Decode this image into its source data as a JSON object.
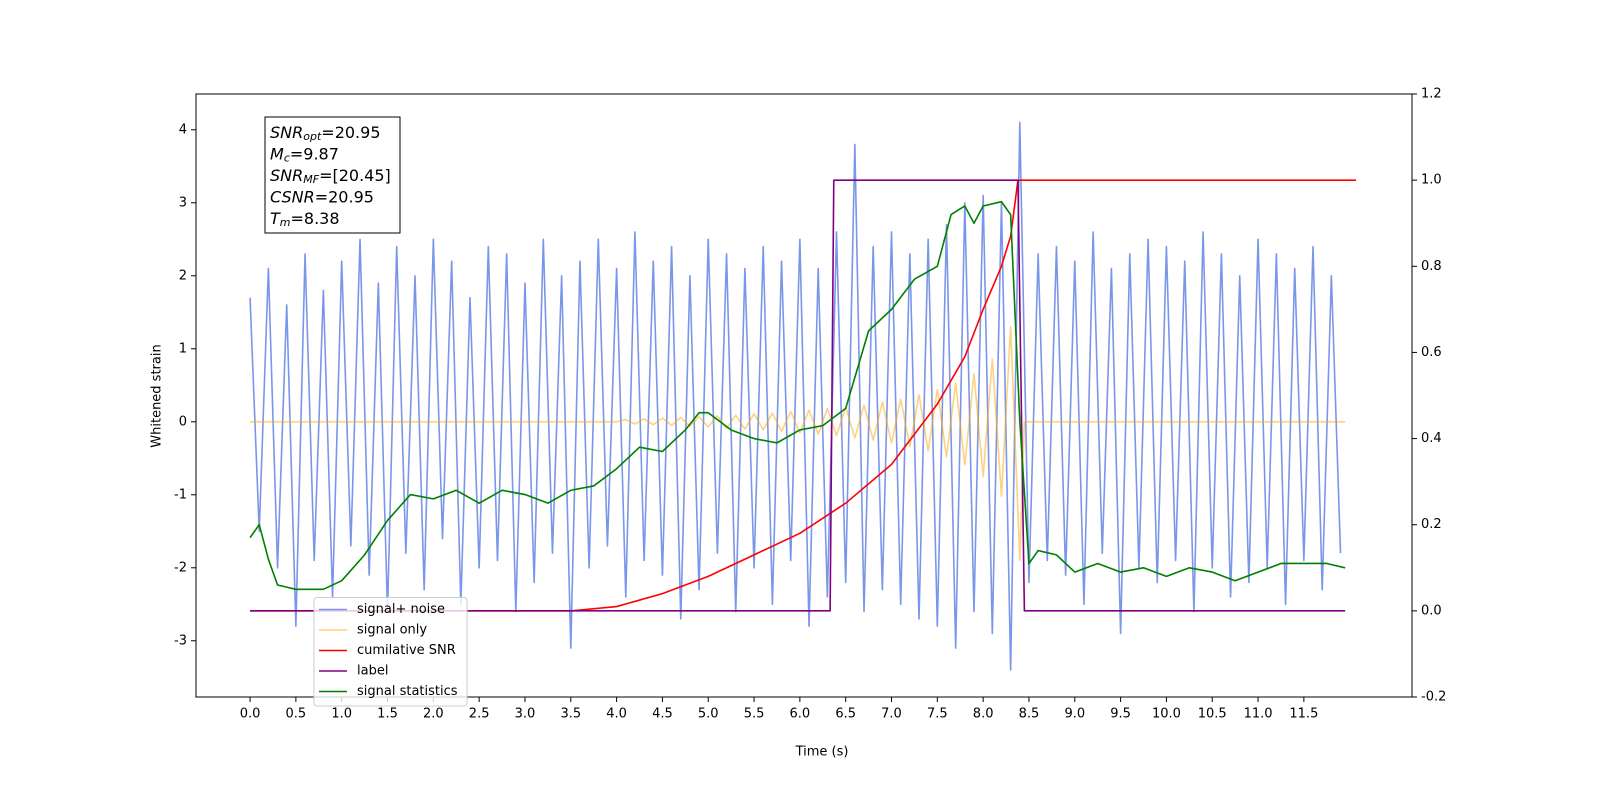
{
  "chart_data": {
    "type": "line",
    "xlabel": "Time (s)",
    "ylabel": "Whitened strain",
    "xlim": [
      -0.59,
      12.68
    ],
    "ylim": [
      -3.77,
      4.49
    ],
    "y2lim": [
      -0.2,
      1.2
    ],
    "xticks": [
      {
        "value": 0,
        "label": "0.0"
      },
      0.5,
      {
        "value": 1,
        "label": "1.0"
      },
      1.5,
      {
        "value": 2,
        "label": "2.0"
      },
      2.5,
      {
        "value": 3,
        "label": "3.0"
      },
      3.5,
      {
        "value": 4,
        "label": "4.0"
      },
      4.5,
      {
        "value": 5,
        "label": "5.0"
      },
      5.5,
      {
        "value": 6,
        "label": "6.0"
      },
      6.5,
      {
        "value": 7,
        "label": "7.0"
      },
      7.5,
      {
        "value": 8,
        "label": "8.0"
      },
      8.5,
      {
        "value": 9,
        "label": "9.0"
      },
      9.5,
      {
        "value": 10,
        "label": "10.0"
      },
      10.5,
      {
        "value": 11,
        "label": "11.0"
      },
      11.5
    ],
    "yticks": [
      -3,
      -2,
      -1,
      0,
      1,
      2,
      3,
      4
    ],
    "y2ticks": [
      -0.2,
      {
        "value": 0,
        "label": "0.0"
      },
      0.2,
      0.4,
      0.6,
      0.8,
      {
        "value": 1,
        "label": "1.0"
      },
      1.2
    ],
    "grid": false,
    "legend": "lower left",
    "annotation": [
      {
        "symbol": "SNR",
        "subscript": "opt",
        "text": "=20.95"
      },
      {
        "symbol": "M",
        "subscript": "c",
        "text": "=9.87"
      },
      {
        "symbol": "SNR",
        "subscript": "MF",
        "text": "=[20.45]"
      },
      {
        "symbol": "CSNR",
        "text": "=20.95"
      },
      {
        "symbol": "T",
        "subscript": "m",
        "text": "=8.38"
      }
    ],
    "series": [
      {
        "name": "signal+ noise",
        "color": "#4169e1",
        "alpha": 0.7,
        "x": [
          0,
          0.1,
          0.2,
          0.3,
          0.4,
          0.5,
          0.6,
          0.7,
          0.8,
          0.9,
          1,
          1.1,
          1.2,
          1.3,
          1.4,
          1.5,
          1.6,
          1.7,
          1.8,
          1.9,
          2,
          2.1,
          2.2,
          2.3,
          2.4,
          2.5,
          2.6,
          2.7,
          2.8,
          2.9,
          3,
          3.1,
          3.2,
          3.3,
          3.4,
          3.5,
          3.6,
          3.7,
          3.8,
          3.9,
          4,
          4.1,
          4.2,
          4.3,
          4.4,
          4.5,
          4.6,
          4.7,
          4.8,
          4.9,
          5,
          5.1,
          5.2,
          5.3,
          5.4,
          5.5,
          5.6,
          5.7,
          5.8,
          5.9,
          6,
          6.1,
          6.2,
          6.3,
          6.4,
          6.5,
          6.6,
          6.7,
          6.8,
          6.9,
          7,
          7.1,
          7.2,
          7.3,
          7.4,
          7.5,
          7.6,
          7.7,
          7.8,
          7.9,
          8,
          8.1,
          8.2,
          8.3,
          8.4,
          8.5,
          8.6,
          8.7,
          8.8,
          8.9,
          9,
          9.1,
          9.2,
          9.3,
          9.4,
          9.5,
          9.6,
          9.7,
          9.8,
          9.9,
          10,
          10.1,
          10.2,
          10.3,
          10.4,
          10.5,
          10.6,
          10.7,
          10.8,
          10.9,
          11,
          11.1,
          11.2,
          11.3,
          11.4,
          11.5,
          11.6,
          11.7,
          11.8,
          11.9
        ],
        "values": [
          1.7,
          -1.5,
          2.1,
          -2.0,
          1.6,
          -2.8,
          2.3,
          -1.9,
          1.8,
          -2.4,
          2.2,
          -1.7,
          2.5,
          -2.1,
          1.9,
          -2.6,
          2.4,
          -1.8,
          2.0,
          -2.3,
          2.5,
          -1.6,
          2.2,
          -2.5,
          1.7,
          -2.0,
          2.4,
          -1.9,
          2.3,
          -2.6,
          1.9,
          -2.2,
          2.5,
          -1.8,
          2.0,
          -3.1,
          2.2,
          -2.0,
          2.5,
          -1.7,
          2.1,
          -2.4,
          2.6,
          -1.9,
          2.2,
          -2.1,
          2.4,
          -2.7,
          2.0,
          -2.3,
          2.5,
          -1.8,
          2.3,
          -2.6,
          2.1,
          -2.0,
          2.4,
          -2.5,
          2.2,
          -1.9,
          2.5,
          -2.8,
          2.1,
          -2.4,
          2.6,
          -2.2,
          3.8,
          -2.6,
          2.4,
          -2.3,
          2.6,
          -2.5,
          2.3,
          -2.7,
          2.5,
          -2.8,
          2.7,
          -3.1,
          3.0,
          -2.6,
          3.1,
          -2.9,
          3.0,
          -3.4,
          4.1,
          -2.2,
          2.3,
          -1.9,
          2.4,
          -2.1,
          2.2,
          -2.5,
          2.6,
          -1.8,
          2.1,
          -2.9,
          2.3,
          -2.0,
          2.5,
          -2.2,
          2.4,
          -1.9,
          2.2,
          -2.6,
          2.6,
          -2.0,
          2.3,
          -2.4,
          2.0,
          -2.2,
          2.5,
          -2.0,
          2.3,
          -2.5,
          2.1,
          -1.9,
          2.4,
          -2.3,
          2.0,
          -1.8
        ]
      },
      {
        "name": "signal only",
        "color": "#ffa500",
        "alpha": 0.5,
        "x": [
          0,
          4.0,
          4.1,
          4.2,
          4.3,
          4.4,
          4.5,
          4.6,
          4.7,
          4.8,
          4.9,
          5.0,
          5.1,
          5.2,
          5.3,
          5.4,
          5.5,
          5.6,
          5.7,
          5.8,
          5.9,
          6.0,
          6.1,
          6.2,
          6.3,
          6.4,
          6.5,
          6.6,
          6.7,
          6.8,
          6.9,
          7.0,
          7.1,
          7.2,
          7.3,
          7.4,
          7.5,
          7.6,
          7.7,
          7.8,
          7.9,
          8.0,
          8.1,
          8.2,
          8.3,
          8.4,
          8.45,
          11.95
        ],
        "values": [
          0,
          0,
          0.03,
          -0.03,
          0.04,
          -0.04,
          0.05,
          -0.05,
          0.06,
          -0.06,
          0.07,
          -0.07,
          0.08,
          -0.09,
          0.09,
          -0.1,
          0.11,
          -0.11,
          0.12,
          -0.13,
          0.14,
          -0.15,
          0.16,
          -0.17,
          0.18,
          -0.19,
          0.2,
          -0.22,
          0.23,
          -0.25,
          0.27,
          -0.29,
          0.31,
          -0.34,
          0.37,
          -0.4,
          0.44,
          -0.48,
          0.53,
          -0.59,
          0.66,
          -0.75,
          0.86,
          -1.02,
          1.3,
          -1.9,
          0,
          0
        ]
      },
      {
        "name": "cumilative SNR",
        "color": "#ff0000",
        "axis": "y2",
        "x": [
          0,
          3.5,
          4.0,
          4.5,
          5.0,
          5.5,
          6.0,
          6.5,
          7.0,
          7.5,
          7.8,
          8.0,
          8.2,
          8.3,
          8.38,
          12.07
        ],
        "values": [
          0,
          0,
          0.01,
          0.04,
          0.08,
          0.13,
          0.18,
          0.25,
          0.34,
          0.48,
          0.59,
          0.7,
          0.8,
          0.87,
          1,
          1
        ]
      },
      {
        "name": "label",
        "color": "#800080",
        "axis": "y2",
        "x": [
          0,
          6.33,
          6.37,
          8.38,
          8.45,
          11.95
        ],
        "values": [
          0,
          0,
          1,
          1,
          0,
          0
        ]
      },
      {
        "name": "signal statistics",
        "color": "#008000",
        "axis": "y2",
        "x": [
          0,
          0.1,
          0.2,
          0.3,
          0.5,
          0.8,
          1.0,
          1.25,
          1.5,
          1.75,
          2.0,
          2.25,
          2.5,
          2.75,
          3.0,
          3.25,
          3.5,
          3.75,
          4.0,
          4.25,
          4.5,
          4.75,
          4.9,
          5.0,
          5.25,
          5.5,
          5.75,
          6.0,
          6.25,
          6.5,
          6.75,
          7.0,
          7.25,
          7.5,
          7.65,
          7.8,
          7.9,
          8.0,
          8.2,
          8.3,
          8.4,
          8.5,
          8.6,
          8.8,
          9.0,
          9.25,
          9.5,
          9.75,
          10.0,
          10.25,
          10.5,
          10.75,
          11.0,
          11.25,
          11.5,
          11.75,
          11.95
        ],
        "values": [
          0.17,
          0.2,
          0.12,
          0.06,
          0.05,
          0.05,
          0.07,
          0.13,
          0.21,
          0.27,
          0.26,
          0.28,
          0.25,
          0.28,
          0.27,
          0.25,
          0.28,
          0.29,
          0.33,
          0.38,
          0.37,
          0.42,
          0.46,
          0.46,
          0.42,
          0.4,
          0.39,
          0.42,
          0.43,
          0.47,
          0.65,
          0.7,
          0.77,
          0.8,
          0.92,
          0.94,
          0.9,
          0.94,
          0.95,
          0.92,
          0.44,
          0.11,
          0.14,
          0.13,
          0.09,
          0.11,
          0.09,
          0.1,
          0.08,
          0.1,
          0.09,
          0.07,
          0.09,
          0.11,
          0.11,
          0.11,
          0.1
        ]
      }
    ]
  }
}
